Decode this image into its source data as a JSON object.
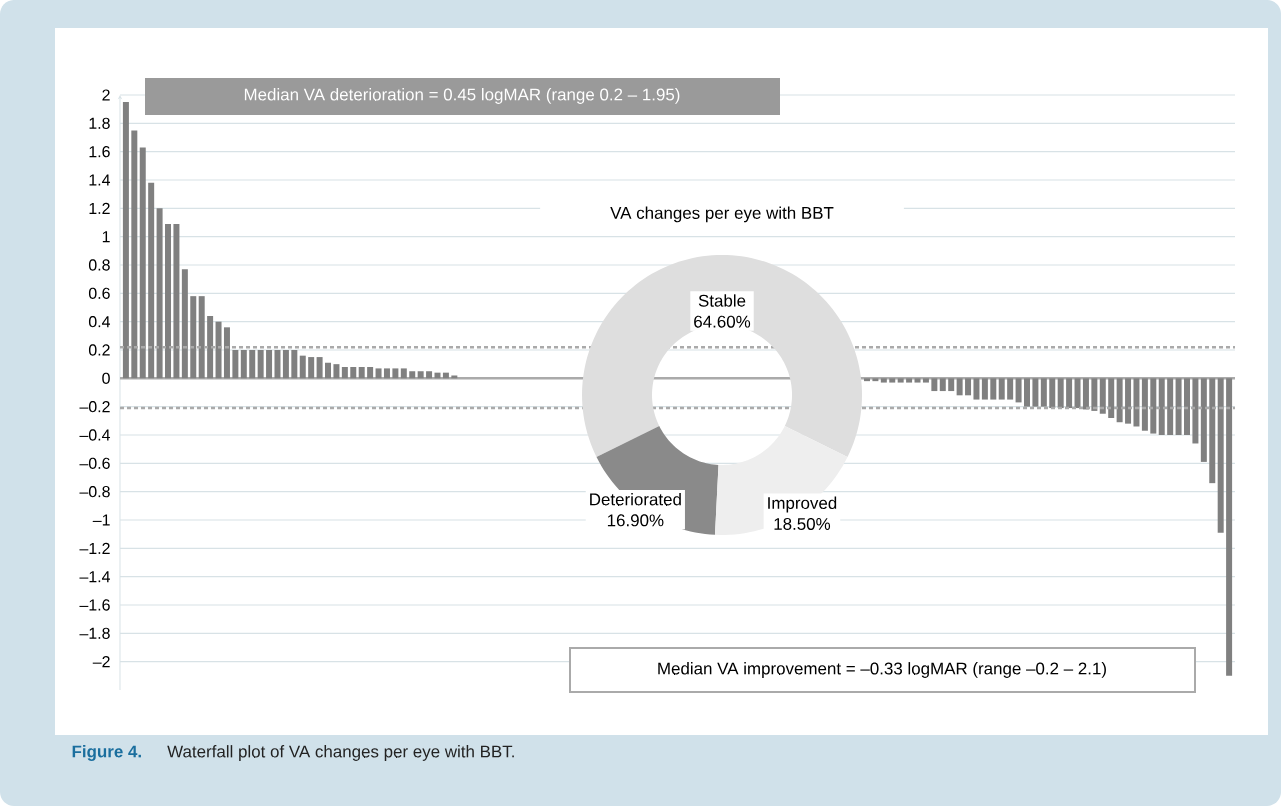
{
  "chart_data": [
    {
      "type": "bar",
      "color": "#808080",
      "categories": [
        null,
        null,
        null,
        null,
        null,
        null,
        null,
        null,
        null,
        null,
        null,
        null,
        null,
        null,
        null,
        null,
        null,
        null,
        null,
        null,
        null,
        null,
        null,
        null,
        null,
        null,
        null,
        null,
        null,
        null,
        null,
        null,
        null,
        null,
        null,
        null,
        null,
        null,
        null,
        null,
        null,
        null,
        null,
        null,
        null,
        null,
        null,
        null,
        null,
        null,
        null,
        null,
        null,
        null,
        null,
        null,
        null,
        null,
        null,
        null,
        null,
        null,
        null,
        null,
        null,
        null,
        null,
        null,
        null,
        null,
        null,
        null,
        null,
        null,
        null,
        null,
        null,
        null,
        null,
        null,
        null,
        null,
        null,
        null,
        null,
        null,
        null,
        null,
        null,
        null,
        null,
        null,
        null,
        null,
        null,
        null,
        null,
        null,
        null,
        null,
        null,
        null,
        null,
        null,
        null,
        null,
        null,
        null,
        null,
        null,
        null,
        null,
        null,
        null,
        null,
        null,
        null,
        null,
        null,
        null,
        null,
        null,
        null,
        null,
        null,
        null,
        null,
        null,
        null,
        null,
        null,
        null
      ],
      "values": [
        1.95,
        1.75,
        1.63,
        1.38,
        1.2,
        1.09,
        1.09,
        0.77,
        0.58,
        0.58,
        0.44,
        0.4,
        0.36,
        0.2,
        0.2,
        0.2,
        0.2,
        0.2,
        0.2,
        0.2,
        0.2,
        0.16,
        0.15,
        0.15,
        0.11,
        0.1,
        0.08,
        0.08,
        0.08,
        0.08,
        0.07,
        0.07,
        0.07,
        0.07,
        0.05,
        0.05,
        0.05,
        0.04,
        0.04,
        0.02,
        0,
        0,
        0,
        0,
        0,
        0,
        0,
        0,
        0,
        0,
        0,
        0,
        0,
        0,
        0,
        0,
        0,
        0,
        0,
        0,
        0,
        0,
        0,
        0,
        0,
        0,
        0,
        0,
        0,
        0,
        0,
        0,
        0,
        0,
        0,
        0,
        0,
        0,
        0,
        0,
        0,
        0,
        0,
        0,
        0,
        0,
        0,
        0,
        -0.02,
        -0.02,
        -0.03,
        -0.03,
        -0.03,
        -0.03,
        -0.03,
        -0.03,
        -0.09,
        -0.09,
        -0.09,
        -0.12,
        -0.12,
        -0.15,
        -0.15,
        -0.15,
        -0.15,
        -0.15,
        -0.17,
        -0.2,
        -0.2,
        -0.2,
        -0.21,
        -0.21,
        -0.21,
        -0.21,
        -0.22,
        -0.23,
        -0.25,
        -0.28,
        -0.31,
        -0.32,
        -0.34,
        -0.37,
        -0.39,
        -0.4,
        -0.4,
        -0.4,
        -0.4,
        -0.46,
        -0.59,
        -0.74,
        -1.09,
        -2.1
      ],
      "ylim": [
        -2.2,
        2
      ],
      "yticks": [
        {
          "value": -2,
          "label": "–2"
        },
        {
          "value": -1.8,
          "label": "–1.8"
        },
        {
          "value": -1.6,
          "label": "–1.6"
        },
        {
          "value": -1.4,
          "label": "–1.4"
        },
        {
          "value": -1.2,
          "label": "–1.2"
        },
        {
          "value": -1,
          "label": "–1"
        },
        {
          "value": -0.8,
          "label": "–0.8"
        },
        {
          "value": -0.6,
          "label": "–0.6"
        },
        {
          "value": -0.4,
          "label": "–0.4"
        },
        {
          "value": -0.2,
          "label": "–0.2"
        },
        0,
        0.2,
        0.4,
        0.6,
        0.8,
        1,
        1.2,
        1.4,
        1.6,
        1.8,
        2
      ],
      "grid": "y",
      "ref_lines": [
        {
          "axis": "y",
          "value": 0.22,
          "label": null,
          "color": "#aaaaaa",
          "line_style": "dotted"
        },
        {
          "axis": "y",
          "value": -0.21,
          "label": null,
          "color": "#aaaaaa",
          "line_style": "dotted"
        }
      ],
      "annotations": [
        "Median VA deterioration = 0.45 logMAR (range 0.2 – 1.95)",
        "Median VA improvement = –0.33 logMAR (range –0.2 – 2.1)",
        "Figure 4.",
        "Waterfall plot of VA changes per eye with BBT."
      ]
    },
    {
      "type": "donut",
      "title": "VA changes per eye with BBT",
      "categories": [
        "Stable",
        "Deteriorated",
        "Improved"
      ],
      "values": [
        64.6,
        16.9,
        18.5
      ],
      "value_labels": [
        "64.60%",
        "16.90%",
        "18.50%"
      ],
      "colors": [
        "#dedede",
        "#8a8a8a",
        "#eeeeee"
      ]
    }
  ]
}
